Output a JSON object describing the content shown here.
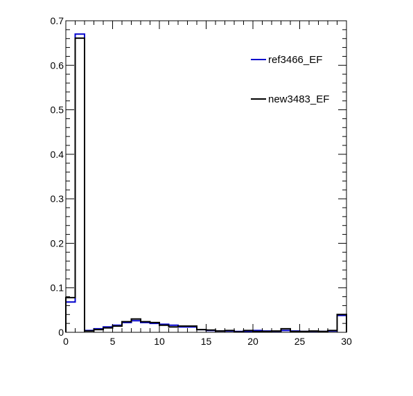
{
  "chart_data": {
    "type": "histogram",
    "title": "",
    "xlabel": "",
    "ylabel": "",
    "xlim": [
      0,
      30
    ],
    "ylim": [
      0,
      0.7
    ],
    "bin_width": 1,
    "x_ticks": [
      0,
      5,
      10,
      15,
      20,
      25,
      30
    ],
    "x_tick_labels": [
      "0",
      "5",
      "10",
      "15",
      "20",
      "25",
      "30"
    ],
    "y_ticks": [
      0,
      0.1,
      0.2,
      0.3,
      0.4,
      0.5,
      0.6,
      0.7
    ],
    "y_tick_labels": [
      "0",
      "0.1",
      "0.2",
      "0.3",
      "0.4",
      "0.5",
      "0.6",
      "0.7"
    ],
    "grid": false,
    "legend_position": "top-right",
    "series": [
      {
        "name": "ref3466_EF",
        "color": "#0000cc",
        "values": [
          0.068,
          0.67,
          0.004,
          0.008,
          0.012,
          0.016,
          0.022,
          0.026,
          0.022,
          0.02,
          0.018,
          0.016,
          0.012,
          0.012,
          0.006,
          0.004,
          0.003,
          0.003,
          0.002,
          0.002,
          0.004,
          0.003,
          0.002,
          0.004,
          0.003,
          0.002,
          0.002,
          0.002,
          0.003,
          0.038
        ]
      },
      {
        "name": "new3483_EF",
        "color": "#000000",
        "values": [
          0.078,
          0.661,
          0.003,
          0.006,
          0.01,
          0.014,
          0.024,
          0.03,
          0.024,
          0.022,
          0.016,
          0.012,
          0.014,
          0.014,
          0.006,
          0.005,
          0.003,
          0.004,
          0.001,
          0.004,
          0.002,
          0.002,
          0.003,
          0.008,
          0.002,
          0.002,
          0.003,
          0.002,
          0.004,
          0.04
        ]
      }
    ]
  }
}
